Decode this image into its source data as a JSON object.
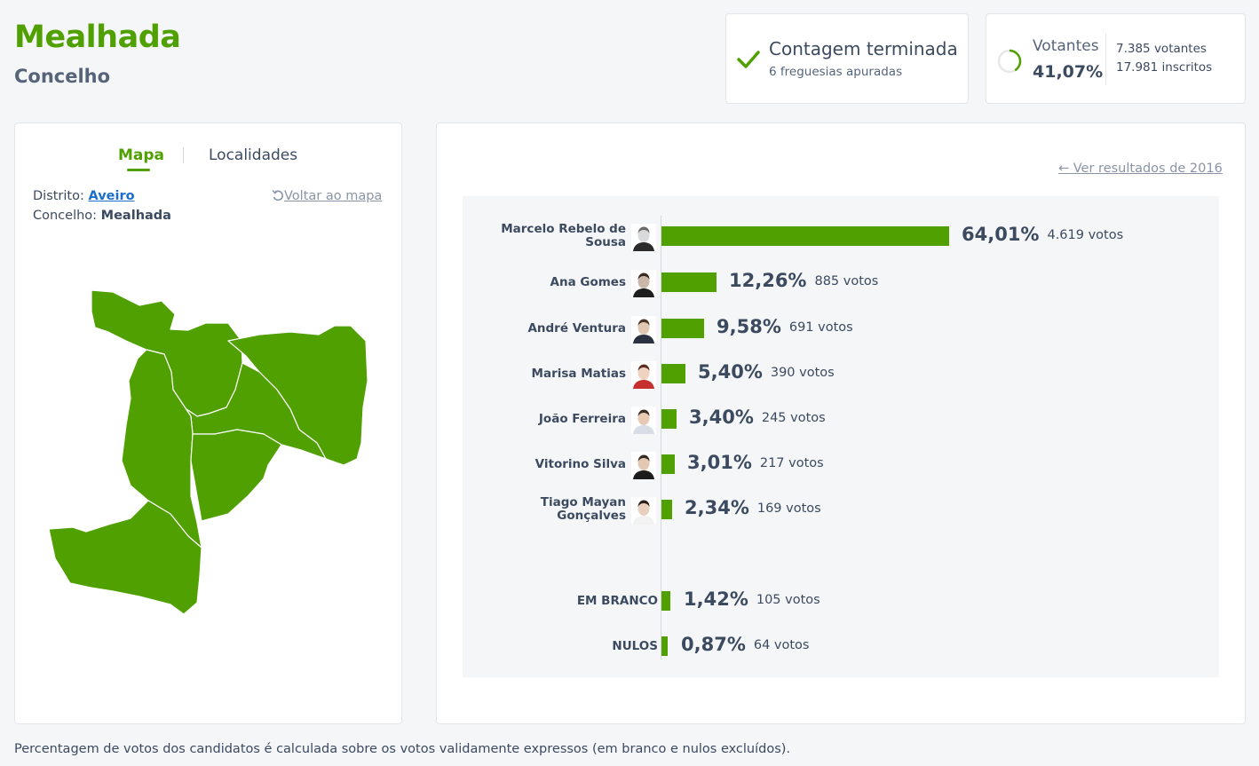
{
  "header": {
    "title": "Mealhada",
    "subtitle": "Concelho"
  },
  "status": {
    "title": "Contagem terminada",
    "subtitle": "6 freguesias apuradas"
  },
  "turnout": {
    "label": "Votantes",
    "percent": "41,07%",
    "percent_value": 41.07,
    "voters": "7.385 votantes",
    "registered": "17.981 inscritos"
  },
  "map_panel": {
    "tabs": [
      {
        "label": "Mapa",
        "active": true
      },
      {
        "label": "Localidades",
        "active": false
      }
    ],
    "district_label": "Distrito:",
    "district_value": "Aveiro",
    "county_label": "Concelho:",
    "county_value": "Mealhada",
    "back_link": "Voltar ao mapa"
  },
  "results": {
    "previous_link": "Ver resultados de 2016",
    "candidates": [
      {
        "name": "Marcelo Rebelo de Sousa",
        "name_lines": [
          "Marcelo Rebelo de",
          "Sousa"
        ],
        "percent": "64,01%",
        "value": 64.01,
        "votes": "4.619 votos"
      },
      {
        "name": "Ana Gomes",
        "name_lines": [
          "Ana Gomes"
        ],
        "percent": "12,26%",
        "value": 12.26,
        "votes": "885 votos"
      },
      {
        "name": "André Ventura",
        "name_lines": [
          "André Ventura"
        ],
        "percent": "9,58%",
        "value": 9.58,
        "votes": "691 votos"
      },
      {
        "name": "Marisa Matias",
        "name_lines": [
          "Marisa Matias"
        ],
        "percent": "5,40%",
        "value": 5.4,
        "votes": "390 votos"
      },
      {
        "name": "João Ferreira",
        "name_lines": [
          "João Ferreira"
        ],
        "percent": "3,40%",
        "value": 3.4,
        "votes": "245 votos"
      },
      {
        "name": "Vitorino Silva",
        "name_lines": [
          "Vitorino Silva"
        ],
        "percent": "3,01%",
        "value": 3.01,
        "votes": "217 votos"
      },
      {
        "name": "Tiago Mayan Gonçalves",
        "name_lines": [
          "Tiago Mayan",
          "Gonçalves"
        ],
        "percent": "2,34%",
        "value": 2.34,
        "votes": "169 votos"
      }
    ],
    "special": [
      {
        "name": "EM BRANCO",
        "percent": "1,42%",
        "value": 1.42,
        "votes": "105 votos"
      },
      {
        "name": "NULOS",
        "percent": "0,87%",
        "value": 0.87,
        "votes": "64 votos"
      }
    ]
  },
  "footnote": "Percentagem de votos dos candidatos é calculada sobre os votos validamente expressos (em branco e nulos excluídos).",
  "colors": {
    "accent": "#4fa000",
    "text": "#3c4a60",
    "muted": "#8a94a6",
    "link": "#1a6fcc"
  },
  "chart_data": {
    "type": "bar",
    "categories": [
      "Marcelo Rebelo de Sousa",
      "Ana Gomes",
      "André Ventura",
      "Marisa Matias",
      "João Ferreira",
      "Vitorino Silva",
      "Tiago Mayan Gonçalves",
      "EM BRANCO",
      "NULOS"
    ],
    "values": [
      64.01,
      12.26,
      9.58,
      5.4,
      3.4,
      3.01,
      2.34,
      1.42,
      0.87
    ],
    "orientation": "horizontal"
  }
}
